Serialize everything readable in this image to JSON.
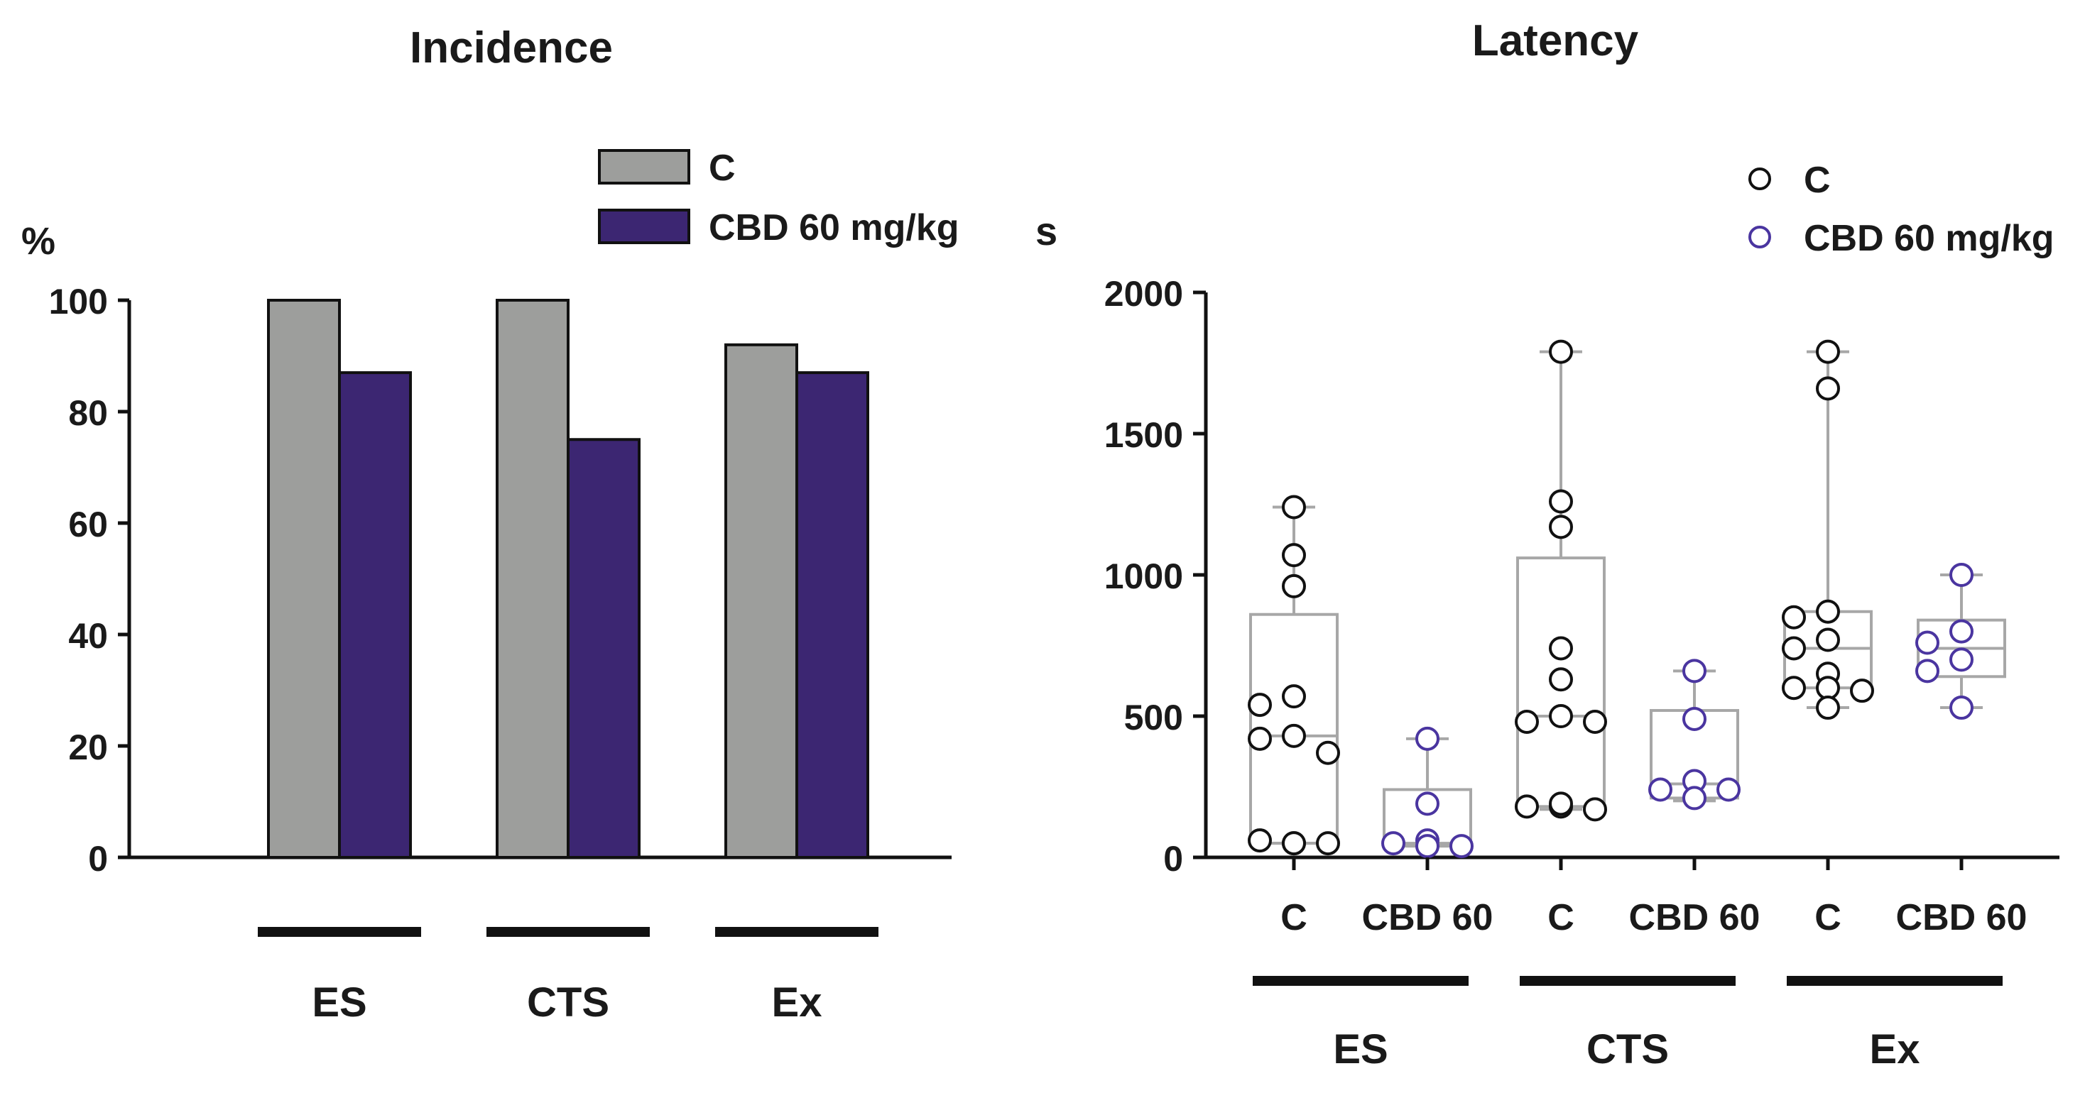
{
  "chart_data": [
    {
      "type": "bar",
      "title": "Incidence",
      "ylabel": "%",
      "xlabel": "",
      "ylim": [
        0,
        100
      ],
      "yticks": [
        0,
        20,
        40,
        60,
        80,
        100
      ],
      "categories": [
        "ES",
        "CTS",
        "Ex"
      ],
      "series": [
        {
          "name": "C",
          "color": "#9d9e9c",
          "values": [
            100,
            100,
            92
          ]
        },
        {
          "name": "CBD 60 mg/kg",
          "color": "#3c2672",
          "values": [
            87,
            75,
            87
          ]
        }
      ],
      "legend_position": "top-right",
      "grid": false
    },
    {
      "type": "scatter",
      "subtype": "box-and-points",
      "title": "Latency",
      "ylabel": "s",
      "xlabel": "",
      "ylim": [
        0,
        2000
      ],
      "yticks": [
        0,
        500,
        1000,
        1500,
        2000
      ],
      "group_labels": [
        "ES",
        "CTS",
        "Ex"
      ],
      "series_labels": [
        "C",
        "CBD 60"
      ],
      "legend": [
        {
          "name": "C",
          "color": "#111111"
        },
        {
          "name": "CBD 60 mg/kg",
          "color": "#4a35a0"
        }
      ],
      "legend_position": "top-right",
      "grid": false,
      "box_color": "#a7a7a7",
      "boxes": [
        {
          "group": "ES",
          "series": "C",
          "min": 50,
          "q1": 50,
          "median": 430,
          "q3": 860,
          "max": 1240,
          "points": [
            1240,
            1070,
            960,
            570,
            540,
            430,
            420,
            370,
            50,
            60,
            50,
            50
          ]
        },
        {
          "group": "ES",
          "series": "CBD 60",
          "min": 40,
          "q1": 40,
          "median": 50,
          "q3": 240,
          "max": 420,
          "points": [
            420,
            190,
            60,
            50,
            40,
            40
          ]
        },
        {
          "group": "CTS",
          "series": "C",
          "min": 170,
          "q1": 180,
          "median": 500,
          "q3": 1060,
          "max": 1790,
          "points": [
            1790,
            1260,
            1170,
            740,
            630,
            500,
            480,
            480,
            180,
            180,
            170,
            190
          ]
        },
        {
          "group": "CTS",
          "series": "CBD 60",
          "min": 200,
          "q1": 210,
          "median": 260,
          "q3": 520,
          "max": 660,
          "points": [
            660,
            490,
            270,
            240,
            240,
            210
          ]
        },
        {
          "group": "Ex",
          "series": "C",
          "min": 530,
          "q1": 600,
          "median": 740,
          "q3": 870,
          "max": 1790,
          "points": [
            1790,
            1660,
            870,
            850,
            770,
            740,
            650,
            600,
            590,
            600,
            530
          ]
        },
        {
          "group": "Ex",
          "series": "CBD 60",
          "min": 530,
          "q1": 640,
          "median": 740,
          "q3": 840,
          "max": 1000,
          "points": [
            1000,
            800,
            760,
            700,
            660,
            530
          ]
        }
      ]
    }
  ]
}
